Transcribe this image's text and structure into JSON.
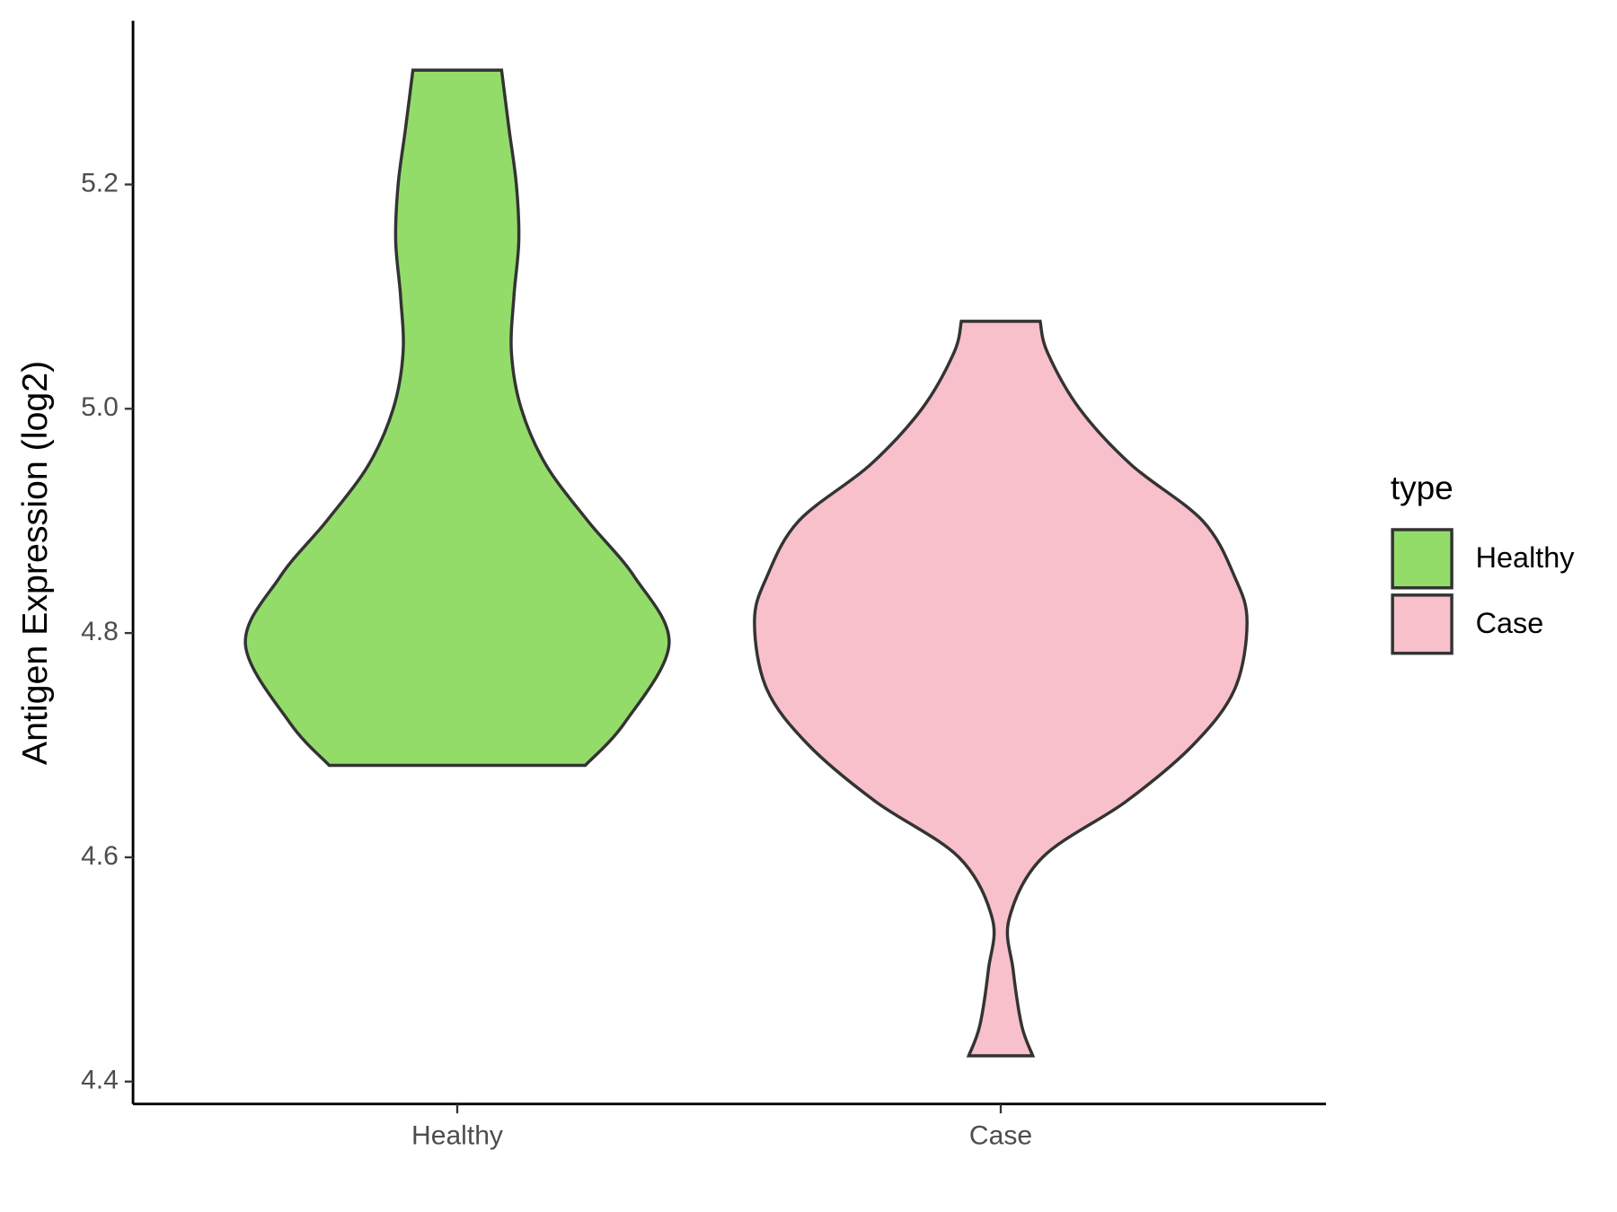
{
  "chart_data": {
    "type": "violin",
    "y_label": "Antigen Expression (log2)",
    "categories": [
      "Healthy",
      "Case"
    ],
    "series": [
      {
        "name": "Healthy",
        "color": "#93dc6a",
        "values": [
          4.682,
          4.72,
          4.79,
          4.85,
          4.9,
          4.95,
          5.0,
          5.05,
          5.1,
          5.15,
          5.2,
          5.25,
          5.302
        ],
        "density": [
          0.52,
          0.68,
          0.86,
          0.72,
          0.53,
          0.36,
          0.26,
          0.22,
          0.23,
          0.25,
          0.24,
          0.21,
          0.18
        ]
      },
      {
        "name": "Case",
        "color": "#f7c0cb",
        "values": [
          4.423,
          4.45,
          4.5,
          4.545,
          4.6,
          4.65,
          4.7,
          4.75,
          4.81,
          4.85,
          4.9,
          4.95,
          5.0,
          5.05,
          5.078
        ],
        "density": [
          0.13,
          0.085,
          0.05,
          0.034,
          0.17,
          0.51,
          0.78,
          0.95,
          1.0,
          0.95,
          0.82,
          0.53,
          0.32,
          0.19,
          0.16
        ]
      }
    ],
    "ylim": [
      4.38,
      5.346
    ],
    "yticks": [
      4.4,
      4.6,
      4.8,
      {
        "value": 5,
        "label": "5.0"
      },
      5.2
    ],
    "legend_title": "type",
    "legend_position": "right"
  }
}
